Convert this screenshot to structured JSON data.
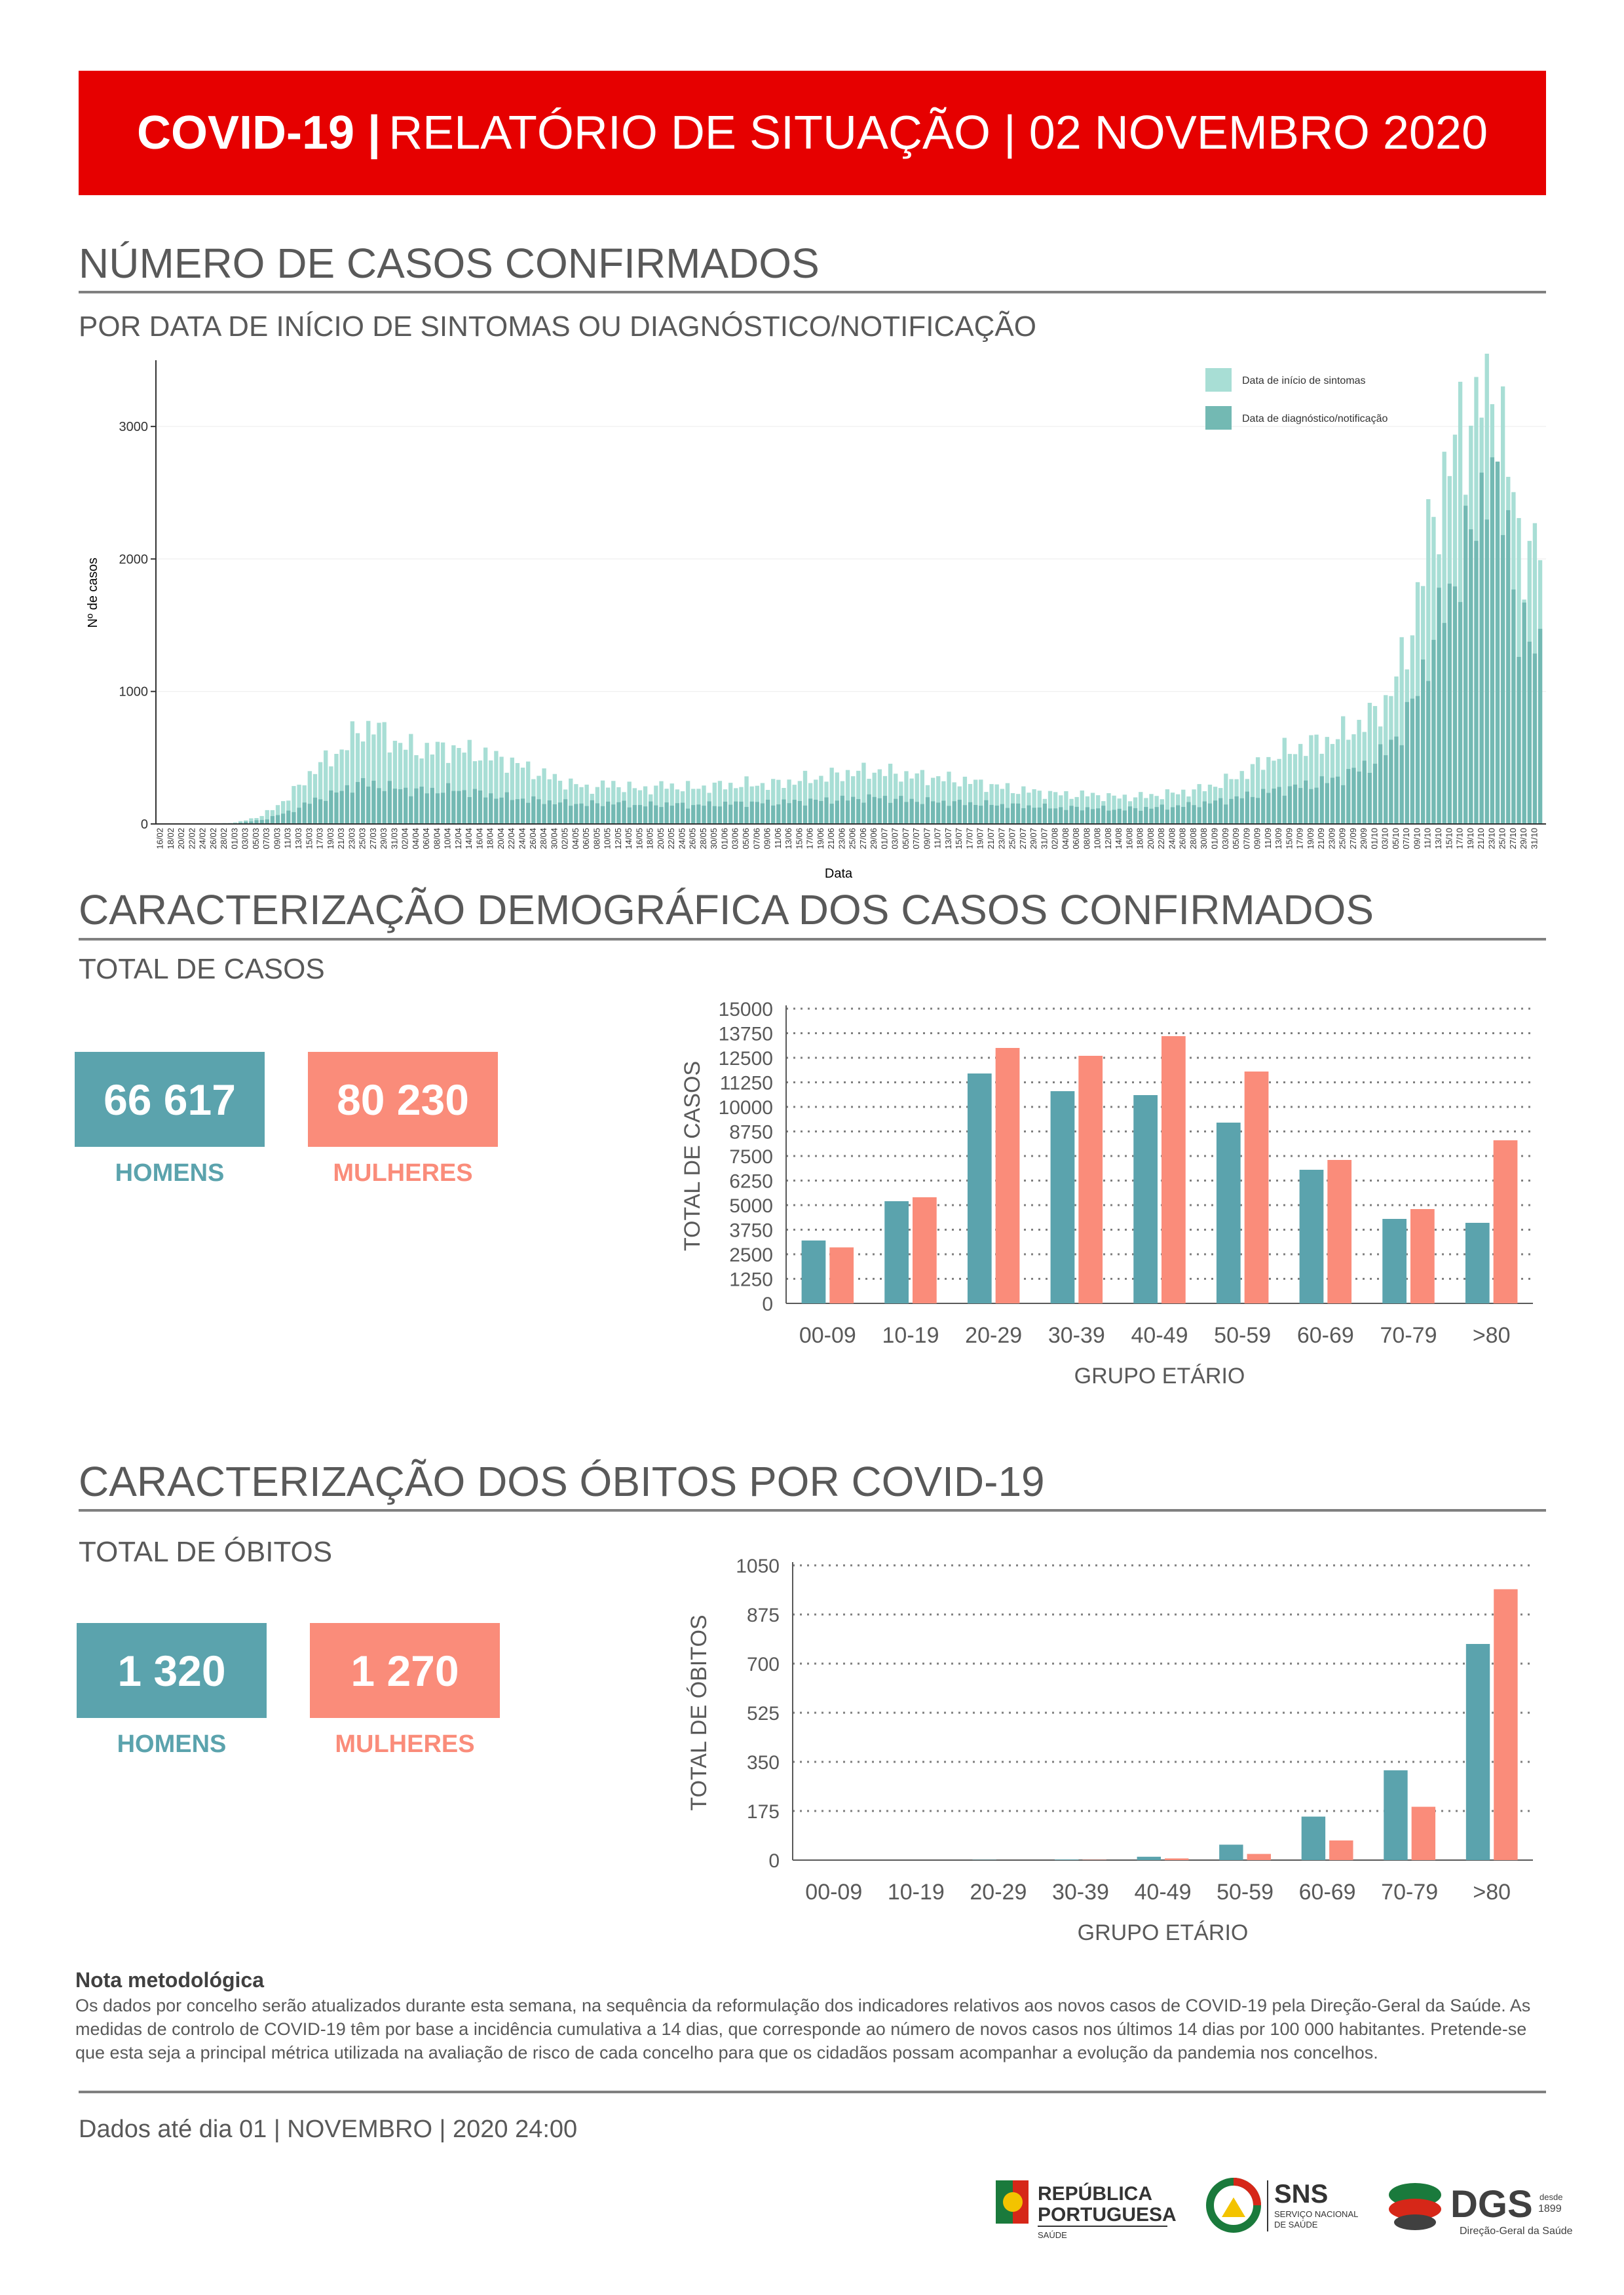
{
  "header": {
    "title_bold": "COVID-19 |",
    "title_rest": "RELATÓRIO DE SITUAÇÃO | 02 NOVEMBRO 2020"
  },
  "section1": {
    "title": "NÚMERO DE CASOS CONFIRMADOS",
    "subtitle": "POR DATA DE INÍCIO DE SINTOMAS OU DIAGNÓSTICO/NOTIFICAÇÃO"
  },
  "section2": {
    "title": "CARACTERIZAÇÃO DEMOGRÁFICA DOS CASOS CONFIRMADOS",
    "subtitle": "TOTAL DE CASOS",
    "men_value": "66 617",
    "men_label": "HOMENS",
    "women_value": "80 230",
    "women_label": "MULHERES"
  },
  "section3": {
    "title": "CARACTERIZAÇÃO DOS ÓBITOS POR COVID-19",
    "subtitle": "TOTAL DE ÓBITOS",
    "men_value": "1 320",
    "men_label": "HOMENS",
    "women_value": "1 270",
    "women_label": "MULHERES"
  },
  "note": {
    "title": "Nota metodológica",
    "body": "Os dados por concelho serão atualizados durante esta semana, na sequência da reformulação dos indicadores relativos aos novos casos de COVID-19 pela Direção-Geral da Saúde. As medidas de controlo de COVID-19 têm por base a incidência cumulativa a 14 dias, que corresponde ao número de novos casos nos últimos 14 dias por 100 000 habitantes. Pretende-se que esta seja a principal métrica utilizada na avaliação de risco de cada concelho para que os cidadãos possam acompanhar a evolução da pandemia nos concelhos."
  },
  "footer": {
    "text": "Dados até dia 01 | NOVEMBRO | 2020 24:00"
  },
  "logos": {
    "rp": [
      "REPÚBLICA",
      "PORTUGUESA",
      "SAÚDE"
    ],
    "sns": [
      "SNS",
      "SERVIÇO NACIONAL",
      "DE SAÚDE"
    ],
    "dgs": [
      "DGS",
      "desde",
      "1899",
      "Direção-Geral da Saúde"
    ]
  },
  "colors": {
    "teal": "#5ba3ad",
    "salmon": "#fa8c7a",
    "red": "#e60000",
    "mint": "#a8ded5",
    "dark_teal": "#73b9b3"
  },
  "chart_data": [
    {
      "type": "bar",
      "xlabel": "Data",
      "ylabel": "Nº de casos",
      "ylim": [
        0,
        3500
      ],
      "yticks": [
        0,
        1000,
        2000,
        3000
      ],
      "legend": [
        "Data de início de sintomas",
        "Data de diagnóstico/notificação"
      ],
      "legend_position": "top-right",
      "date_range": [
        "2020-02-16",
        "2020-11-01"
      ],
      "series": [
        {
          "name": "Data de início de sintomas",
          "anchors": [
            [
              0,
              0
            ],
            [
              8,
              0
            ],
            [
              14,
              10
            ],
            [
              19,
              60
            ],
            [
              24,
              200
            ],
            [
              29,
              420
            ],
            [
              34,
              560
            ],
            [
              37,
              700
            ],
            [
              40,
              740
            ],
            [
              44,
              620
            ],
            [
              48,
              560
            ],
            [
              55,
              570
            ],
            [
              60,
              530
            ],
            [
              65,
              480
            ],
            [
              70,
              400
            ],
            [
              75,
              330
            ],
            [
              80,
              270
            ],
            [
              85,
              300
            ],
            [
              90,
              260
            ],
            [
              95,
              290
            ],
            [
              100,
              270
            ],
            [
              105,
              290
            ],
            [
              110,
              300
            ],
            [
              115,
              300
            ],
            [
              120,
              330
            ],
            [
              125,
              360
            ],
            [
              130,
              390
            ],
            [
              135,
              400
            ],
            [
              140,
              370
            ],
            [
              145,
              350
            ],
            [
              150,
              330
            ],
            [
              155,
              300
            ],
            [
              160,
              260
            ],
            [
              165,
              240
            ],
            [
              170,
              220
            ],
            [
              175,
              220
            ],
            [
              180,
              200
            ],
            [
              185,
              210
            ],
            [
              190,
              230
            ],
            [
              195,
              260
            ],
            [
              200,
              320
            ],
            [
              205,
              420
            ],
            [
              210,
              530
            ],
            [
              215,
              590
            ],
            [
              220,
              640
            ],
            [
              223,
              700
            ],
            [
              227,
              800
            ],
            [
              230,
              920
            ],
            [
              233,
              1200
            ],
            [
              235,
              1500
            ],
            [
              237,
              1950
            ],
            [
              239,
              2300
            ],
            [
              241,
              2600
            ],
            [
              243,
              2850
            ],
            [
              245,
              3000
            ],
            [
              247,
              3150
            ],
            [
              249,
              3380
            ],
            [
              251,
              3250
            ],
            [
              253,
              2700
            ],
            [
              255,
              2100
            ]
          ]
        },
        {
          "name": "Data de diagnóstico/notificação",
          "anchors": [
            [
              0,
              0
            ],
            [
              8,
              0
            ],
            [
              14,
              5
            ],
            [
              19,
              30
            ],
            [
              24,
              90
            ],
            [
              29,
              180
            ],
            [
              34,
              250
            ],
            [
              37,
              310
            ],
            [
              40,
              300
            ],
            [
              44,
              270
            ],
            [
              48,
              250
            ],
            [
              55,
              260
            ],
            [
              60,
              230
            ],
            [
              65,
              200
            ],
            [
              70,
              180
            ],
            [
              75,
              160
            ],
            [
              80,
              150
            ],
            [
              85,
              160
            ],
            [
              90,
              140
            ],
            [
              95,
              150
            ],
            [
              100,
              140
            ],
            [
              105,
              150
            ],
            [
              110,
              160
            ],
            [
              115,
              160
            ],
            [
              120,
              170
            ],
            [
              125,
              180
            ],
            [
              130,
              190
            ],
            [
              135,
              200
            ],
            [
              140,
              180
            ],
            [
              145,
              170
            ],
            [
              150,
              160
            ],
            [
              155,
              150
            ],
            [
              160,
              140
            ],
            [
              165,
              130
            ],
            [
              170,
              120
            ],
            [
              175,
              120
            ],
            [
              180,
              110
            ],
            [
              185,
              120
            ],
            [
              190,
              130
            ],
            [
              195,
              150
            ],
            [
              200,
              180
            ],
            [
              205,
              220
            ],
            [
              210,
              260
            ],
            [
              215,
              290
            ],
            [
              220,
              330
            ],
            [
              223,
              380
            ],
            [
              227,
              450
            ],
            [
              230,
              550
            ],
            [
              233,
              720
            ],
            [
              235,
              900
            ],
            [
              237,
              1150
            ],
            [
              239,
              1400
            ],
            [
              241,
              1650
            ],
            [
              243,
              1850
            ],
            [
              245,
              2050
            ],
            [
              247,
              2300
            ],
            [
              249,
              2700
            ],
            [
              251,
              2600
            ],
            [
              253,
              2300
            ],
            [
              255,
              1400
            ]
          ]
        }
      ]
    },
    {
      "type": "bar",
      "categories": [
        "00-09",
        "10-19",
        "20-29",
        "30-39",
        "40-49",
        "50-59",
        "60-69",
        "70-79",
        ">80"
      ],
      "series": [
        {
          "name": "HOMENS",
          "values": [
            3200,
            5200,
            11700,
            10800,
            10600,
            9200,
            6800,
            4300,
            4100
          ]
        },
        {
          "name": "MULHERES",
          "values": [
            2850,
            5400,
            13000,
            12600,
            13600,
            11800,
            7300,
            4800,
            8300
          ]
        }
      ],
      "xlabel": "GRUPO ETÁRIO",
      "ylabel": "TOTAL DE CASOS",
      "ylim": [
        0,
        15000
      ],
      "yticks": [
        0,
        1250,
        2500,
        3750,
        5000,
        6250,
        7500,
        8750,
        10000,
        11250,
        12500,
        13750,
        15000
      ]
    },
    {
      "type": "bar",
      "categories": [
        "00-09",
        "10-19",
        "20-29",
        "30-39",
        "40-49",
        "50-59",
        "60-69",
        "70-79",
        ">80"
      ],
      "series": [
        {
          "name": "HOMENS",
          "values": [
            0,
            0,
            1,
            2,
            12,
            55,
            155,
            320,
            770
          ]
        },
        {
          "name": "MULHERES",
          "values": [
            0,
            0,
            0,
            1,
            6,
            22,
            70,
            190,
            965
          ]
        }
      ],
      "xlabel": "GRUPO ETÁRIO",
      "ylabel": "TOTAL DE ÓBITOS",
      "ylim": [
        0,
        1050
      ],
      "yticks": [
        0,
        175,
        350,
        525,
        700,
        875,
        1050
      ]
    }
  ]
}
